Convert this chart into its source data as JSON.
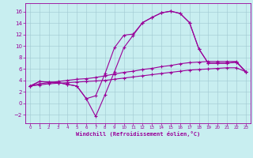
{
  "xlabel": "Windchill (Refroidissement éolien,°C)",
  "background_color": "#c8eef0",
  "line_color": "#990099",
  "xlim": [
    -0.5,
    23.5
  ],
  "ylim": [
    -3.5,
    17.5
  ],
  "yticks": [
    -2,
    0,
    2,
    4,
    6,
    8,
    10,
    12,
    14,
    16
  ],
  "xticks": [
    0,
    1,
    2,
    3,
    4,
    5,
    6,
    7,
    8,
    9,
    10,
    11,
    12,
    13,
    14,
    15,
    16,
    17,
    18,
    19,
    20,
    21,
    22,
    23
  ],
  "line1_x": [
    0,
    1,
    2,
    3,
    4,
    5,
    6,
    7,
    8,
    9,
    10,
    11,
    12,
    13,
    14,
    15,
    16,
    17,
    18,
    19,
    20,
    21,
    22,
    23
  ],
  "line1_y": [
    3.0,
    3.8,
    3.7,
    3.6,
    3.3,
    3.0,
    0.8,
    1.3,
    5.2,
    9.7,
    11.9,
    12.1,
    14.1,
    15.0,
    15.8,
    16.1,
    15.7,
    14.1,
    9.5,
    7.0,
    7.0,
    7.0,
    7.2,
    5.5
  ],
  "line2_x": [
    0,
    1,
    2,
    3,
    4,
    5,
    6,
    7,
    8,
    9,
    10,
    11,
    12,
    13,
    14,
    15,
    16,
    17,
    18,
    19,
    20,
    21,
    22,
    23
  ],
  "line2_y": [
    3.0,
    3.4,
    3.6,
    3.8,
    4.0,
    4.2,
    4.3,
    4.5,
    4.8,
    5.1,
    5.4,
    5.6,
    5.9,
    6.1,
    6.4,
    6.6,
    6.9,
    7.1,
    7.2,
    7.3,
    7.3,
    7.3,
    7.3,
    5.5
  ],
  "line3_x": [
    0,
    1,
    2,
    3,
    4,
    5,
    6,
    7,
    8,
    9,
    10,
    11,
    12,
    13,
    14,
    15,
    16,
    17,
    18,
    19,
    20,
    21,
    22,
    23
  ],
  "line3_y": [
    3.0,
    3.2,
    3.4,
    3.5,
    3.6,
    3.7,
    3.8,
    3.9,
    4.0,
    4.2,
    4.4,
    4.6,
    4.8,
    5.0,
    5.2,
    5.4,
    5.6,
    5.8,
    5.9,
    6.0,
    6.1,
    6.2,
    6.2,
    5.5
  ],
  "line4_x": [
    0,
    1,
    2,
    3,
    4,
    5,
    6,
    7,
    8,
    9,
    10,
    11,
    12,
    13,
    14,
    15,
    16,
    17,
    18,
    19,
    20,
    21,
    22,
    23
  ],
  "line4_y": [
    3.0,
    3.8,
    3.7,
    3.6,
    3.3,
    3.0,
    0.8,
    -2.3,
    1.5,
    5.5,
    9.7,
    11.9,
    14.1,
    15.0,
    15.8,
    16.1,
    15.7,
    14.1,
    9.5,
    7.0,
    7.0,
    7.0,
    7.2,
    5.5
  ]
}
